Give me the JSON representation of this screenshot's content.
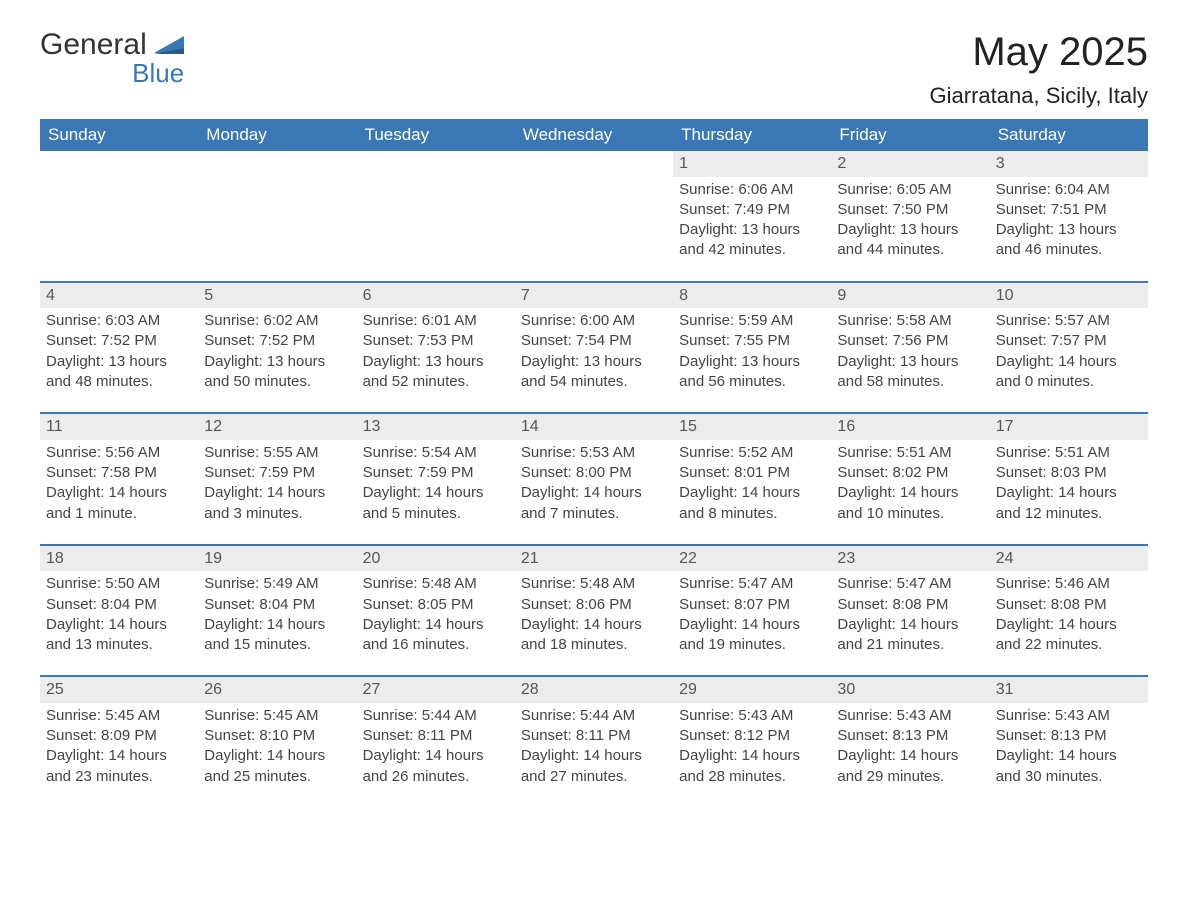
{
  "brand": {
    "name": "General",
    "sub": "Blue",
    "accent": "#3a78b5"
  },
  "title": "May 2025",
  "location": "Giarratana, Sicily, Italy",
  "colors": {
    "header_bg": "#3a78b5",
    "header_text": "#ffffff",
    "daynum_bg": "#ececec",
    "row_border": "#3a78b5",
    "body_text": "#444444",
    "page_bg": "#ffffff"
  },
  "weekdays": [
    "Sunday",
    "Monday",
    "Tuesday",
    "Wednesday",
    "Thursday",
    "Friday",
    "Saturday"
  ],
  "layout": {
    "columns": 7,
    "rows": 5,
    "first_day_column": 4
  },
  "days": [
    {
      "n": 1,
      "sunrise": "6:06 AM",
      "sunset": "7:49 PM",
      "daylight": "13 hours and 42 minutes."
    },
    {
      "n": 2,
      "sunrise": "6:05 AM",
      "sunset": "7:50 PM",
      "daylight": "13 hours and 44 minutes."
    },
    {
      "n": 3,
      "sunrise": "6:04 AM",
      "sunset": "7:51 PM",
      "daylight": "13 hours and 46 minutes."
    },
    {
      "n": 4,
      "sunrise": "6:03 AM",
      "sunset": "7:52 PM",
      "daylight": "13 hours and 48 minutes."
    },
    {
      "n": 5,
      "sunrise": "6:02 AM",
      "sunset": "7:52 PM",
      "daylight": "13 hours and 50 minutes."
    },
    {
      "n": 6,
      "sunrise": "6:01 AM",
      "sunset": "7:53 PM",
      "daylight": "13 hours and 52 minutes."
    },
    {
      "n": 7,
      "sunrise": "6:00 AM",
      "sunset": "7:54 PM",
      "daylight": "13 hours and 54 minutes."
    },
    {
      "n": 8,
      "sunrise": "5:59 AM",
      "sunset": "7:55 PM",
      "daylight": "13 hours and 56 minutes."
    },
    {
      "n": 9,
      "sunrise": "5:58 AM",
      "sunset": "7:56 PM",
      "daylight": "13 hours and 58 minutes."
    },
    {
      "n": 10,
      "sunrise": "5:57 AM",
      "sunset": "7:57 PM",
      "daylight": "14 hours and 0 minutes."
    },
    {
      "n": 11,
      "sunrise": "5:56 AM",
      "sunset": "7:58 PM",
      "daylight": "14 hours and 1 minute."
    },
    {
      "n": 12,
      "sunrise": "5:55 AM",
      "sunset": "7:59 PM",
      "daylight": "14 hours and 3 minutes."
    },
    {
      "n": 13,
      "sunrise": "5:54 AM",
      "sunset": "7:59 PM",
      "daylight": "14 hours and 5 minutes."
    },
    {
      "n": 14,
      "sunrise": "5:53 AM",
      "sunset": "8:00 PM",
      "daylight": "14 hours and 7 minutes."
    },
    {
      "n": 15,
      "sunrise": "5:52 AM",
      "sunset": "8:01 PM",
      "daylight": "14 hours and 8 minutes."
    },
    {
      "n": 16,
      "sunrise": "5:51 AM",
      "sunset": "8:02 PM",
      "daylight": "14 hours and 10 minutes."
    },
    {
      "n": 17,
      "sunrise": "5:51 AM",
      "sunset": "8:03 PM",
      "daylight": "14 hours and 12 minutes."
    },
    {
      "n": 18,
      "sunrise": "5:50 AM",
      "sunset": "8:04 PM",
      "daylight": "14 hours and 13 minutes."
    },
    {
      "n": 19,
      "sunrise": "5:49 AM",
      "sunset": "8:04 PM",
      "daylight": "14 hours and 15 minutes."
    },
    {
      "n": 20,
      "sunrise": "5:48 AM",
      "sunset": "8:05 PM",
      "daylight": "14 hours and 16 minutes."
    },
    {
      "n": 21,
      "sunrise": "5:48 AM",
      "sunset": "8:06 PM",
      "daylight": "14 hours and 18 minutes."
    },
    {
      "n": 22,
      "sunrise": "5:47 AM",
      "sunset": "8:07 PM",
      "daylight": "14 hours and 19 minutes."
    },
    {
      "n": 23,
      "sunrise": "5:47 AM",
      "sunset": "8:08 PM",
      "daylight": "14 hours and 21 minutes."
    },
    {
      "n": 24,
      "sunrise": "5:46 AM",
      "sunset": "8:08 PM",
      "daylight": "14 hours and 22 minutes."
    },
    {
      "n": 25,
      "sunrise": "5:45 AM",
      "sunset": "8:09 PM",
      "daylight": "14 hours and 23 minutes."
    },
    {
      "n": 26,
      "sunrise": "5:45 AM",
      "sunset": "8:10 PM",
      "daylight": "14 hours and 25 minutes."
    },
    {
      "n": 27,
      "sunrise": "5:44 AM",
      "sunset": "8:11 PM",
      "daylight": "14 hours and 26 minutes."
    },
    {
      "n": 28,
      "sunrise": "5:44 AM",
      "sunset": "8:11 PM",
      "daylight": "14 hours and 27 minutes."
    },
    {
      "n": 29,
      "sunrise": "5:43 AM",
      "sunset": "8:12 PM",
      "daylight": "14 hours and 28 minutes."
    },
    {
      "n": 30,
      "sunrise": "5:43 AM",
      "sunset": "8:13 PM",
      "daylight": "14 hours and 29 minutes."
    },
    {
      "n": 31,
      "sunrise": "5:43 AM",
      "sunset": "8:13 PM",
      "daylight": "14 hours and 30 minutes."
    }
  ],
  "labels": {
    "sunrise": "Sunrise:",
    "sunset": "Sunset:",
    "daylight": "Daylight:"
  }
}
